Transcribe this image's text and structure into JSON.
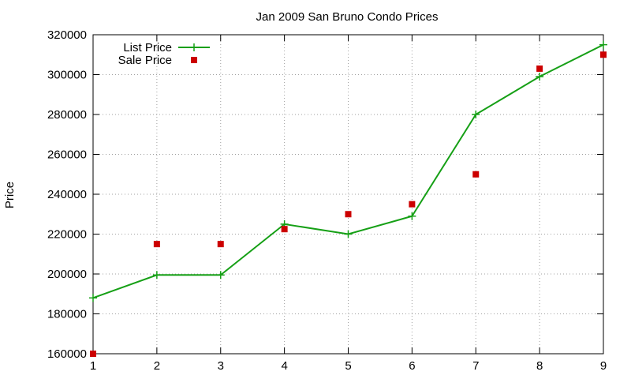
{
  "chart_data": {
    "type": "line",
    "title": "Jan 2009 San Bruno Condo Prices",
    "xlabel": "",
    "ylabel": "Price",
    "x": [
      1,
      2,
      3,
      4,
      5,
      6,
      7,
      8,
      9
    ],
    "xlim": [
      1,
      9
    ],
    "ylim": [
      160000,
      320000
    ],
    "x_ticks": [
      "1",
      "2",
      "3",
      "4",
      "5",
      "6",
      "7",
      "8",
      "9"
    ],
    "y_ticks": [
      "160000",
      "180000",
      "200000",
      "220000",
      "240000",
      "260000",
      "280000",
      "300000",
      "320000"
    ],
    "grid": true,
    "legend_position": "top-left",
    "series": [
      {
        "name": "List Price",
        "style": "line-with-plus-markers",
        "color": "#16a016",
        "values": [
          188000,
          199500,
          199500,
          225000,
          220000,
          229000,
          280000,
          299000,
          315000
        ]
      },
      {
        "name": "Sale Price",
        "style": "square-markers",
        "color": "#cc0000",
        "values": [
          160000,
          215000,
          215000,
          222500,
          230000,
          235000,
          250000,
          303000,
          310000
        ]
      }
    ]
  }
}
